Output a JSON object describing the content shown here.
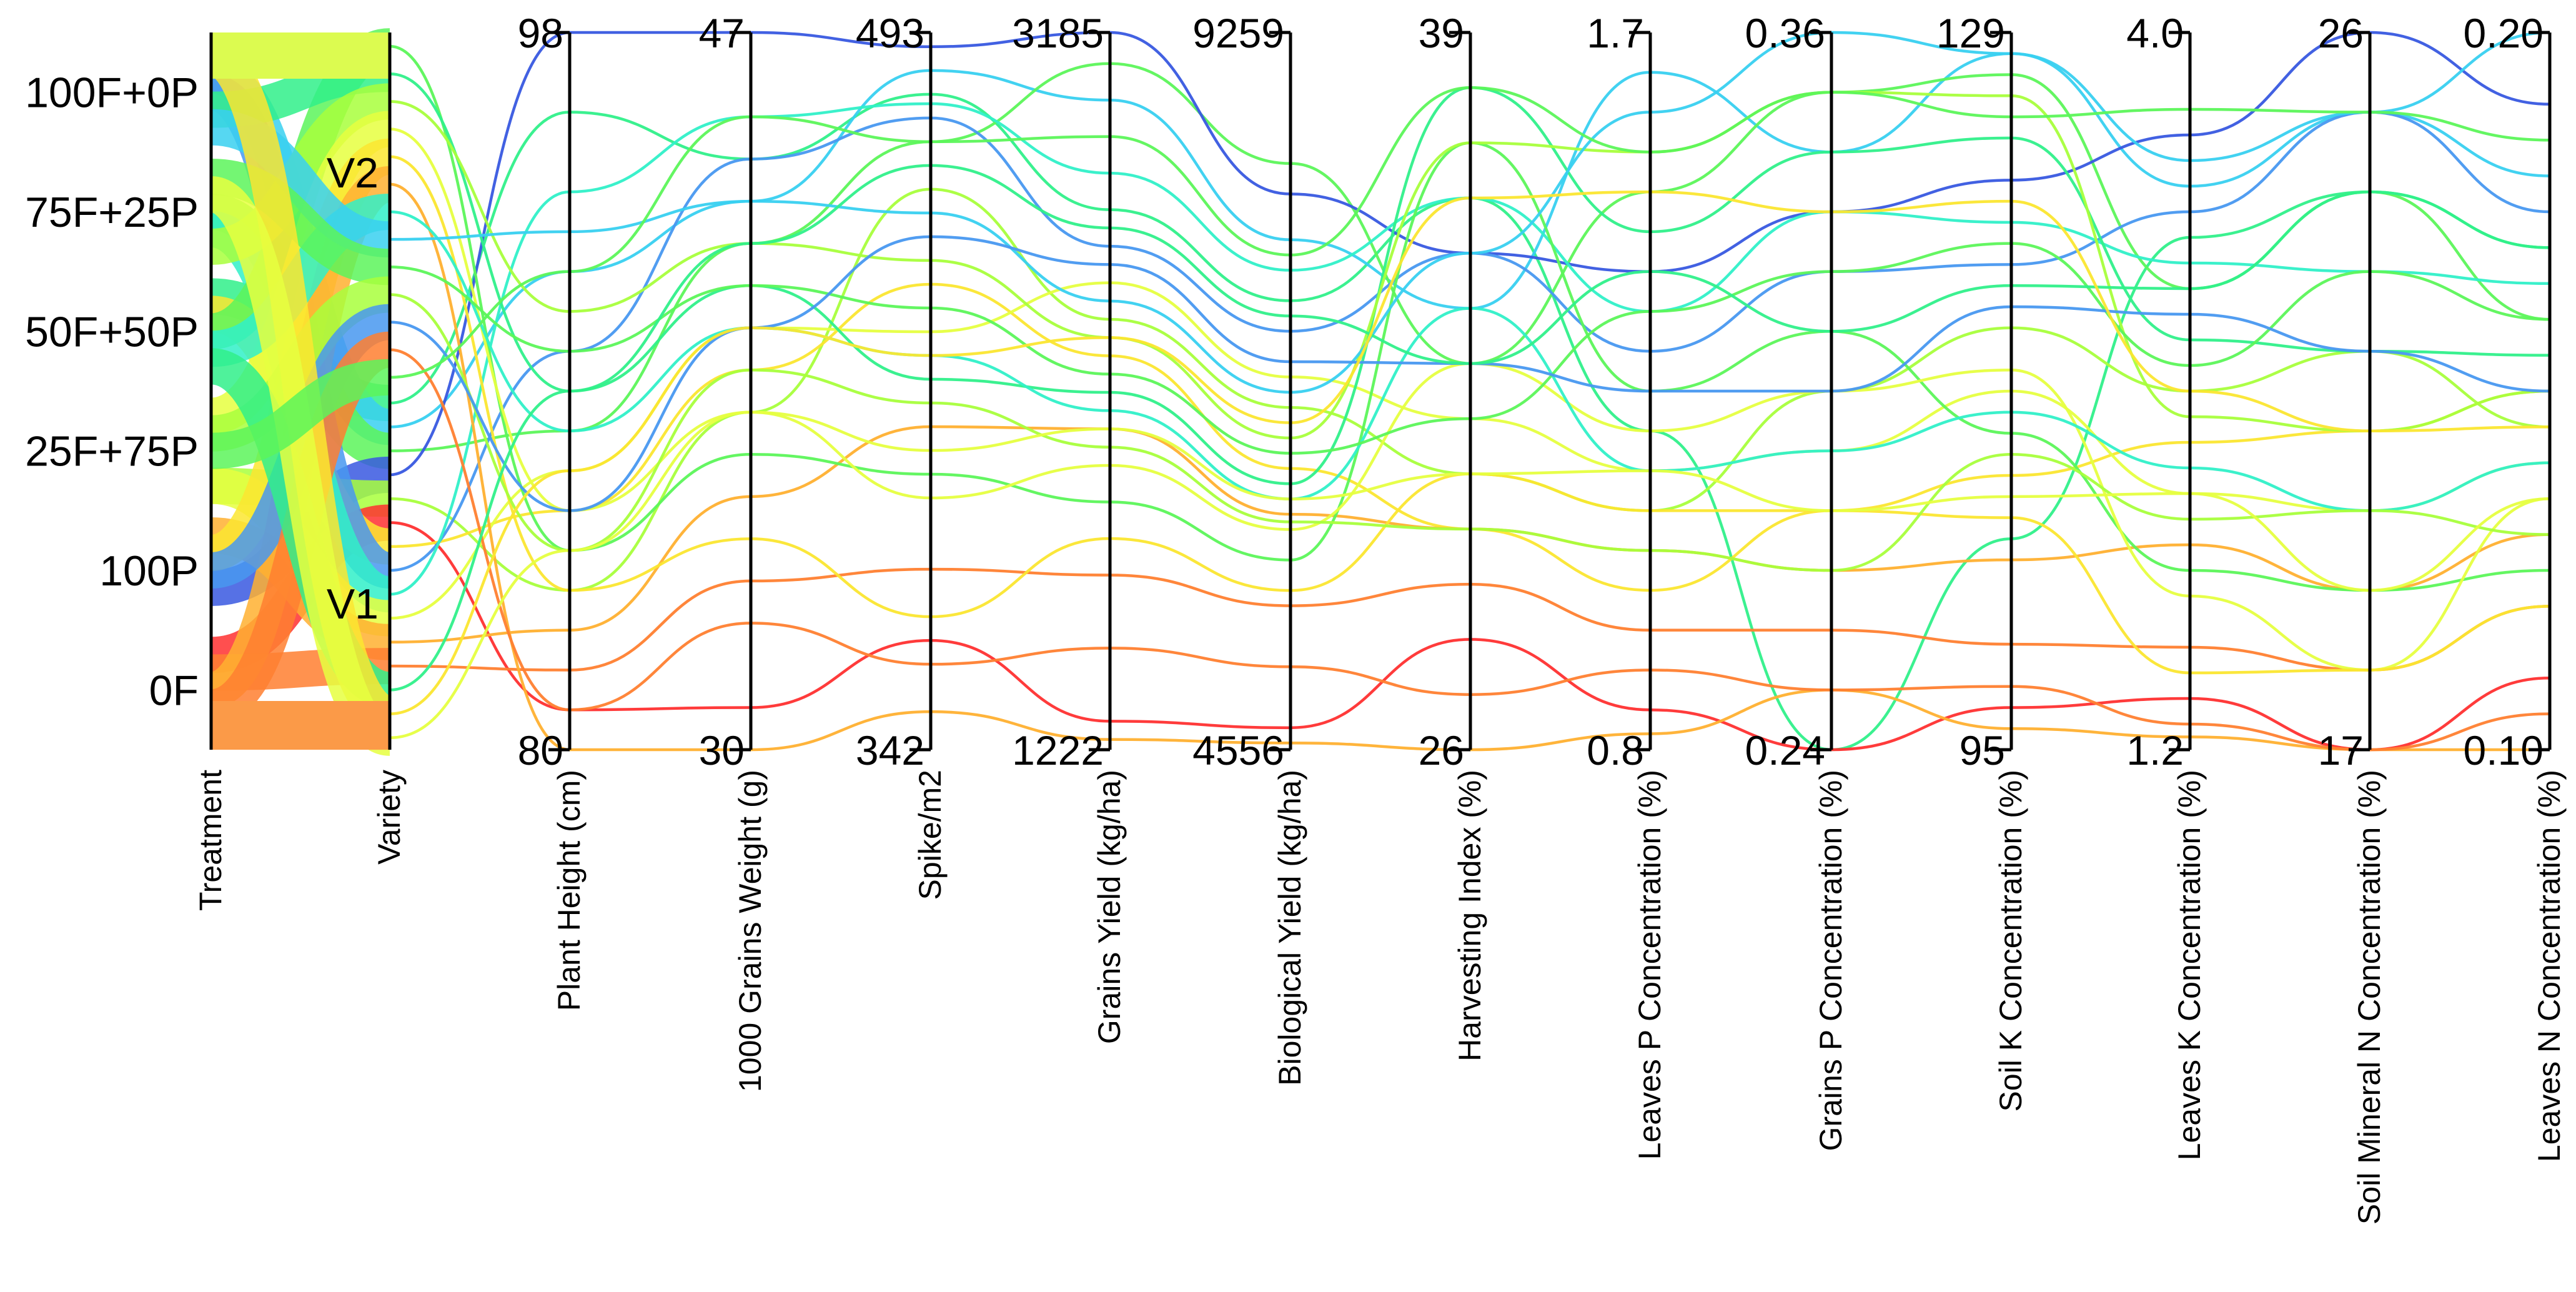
{
  "chart_data": {
    "type": "parallel-coordinates",
    "title": "",
    "categorical_axes": [
      {
        "name": "Treatment",
        "categories": [
          "100F+0P",
          "75F+25P",
          "50F+50P",
          "25F+75P",
          "100P",
          "0F"
        ]
      },
      {
        "name": "Variety",
        "categories": [
          "V2",
          "V1"
        ]
      }
    ],
    "axes": [
      {
        "name": "Treatment",
        "max_label": "",
        "min_label": ""
      },
      {
        "name": "Variety",
        "max_label": "",
        "min_label": ""
      },
      {
        "name": "Plant Height (cm)",
        "max_label": "98",
        "min_label": "80",
        "min": 80,
        "max": 98
      },
      {
        "name": "1000 Grains Weight (g)",
        "max_label": "47",
        "min_label": "30",
        "min": 30,
        "max": 47
      },
      {
        "name": "Spike/m2",
        "max_label": "493",
        "min_label": "342",
        "min": 342,
        "max": 493
      },
      {
        "name": "Grains Yield (kg/ha)",
        "max_label": "3185",
        "min_label": "1222",
        "min": 1222,
        "max": 3185
      },
      {
        "name": "Biological Yield (kg/ha)",
        "max_label": "9259",
        "min_label": "4556",
        "min": 4556,
        "max": 9259
      },
      {
        "name": "Harvesting Index (%)",
        "max_label": "39",
        "min_label": "26",
        "min": 26,
        "max": 39
      },
      {
        "name": "Leaves P Concentration (%)",
        "max_label": "1.7",
        "min_label": "0.8",
        "min": 0.8,
        "max": 1.7
      },
      {
        "name": "Grains P Concentration (%)",
        "max_label": "0.36",
        "min_label": "0.24",
        "min": 0.24,
        "max": 0.36
      },
      {
        "name": "Soil K Concentration (%)",
        "max_label": "129",
        "min_label": "95",
        "min": 95,
        "max": 129
      },
      {
        "name": "Leaves K Concentration (%)",
        "max_label": "4.0",
        "min_label": "1.2",
        "min": 1.2,
        "max": 4.0
      },
      {
        "name": "Soil Mineral N Concentration (%)",
        "max_label": "26",
        "min_label": "17",
        "min": 17,
        "max": 26
      },
      {
        "name": "Leaves N Concentration (%)",
        "max_label": "0.20",
        "min_label": "0.10",
        "min": 0.1,
        "max": 0.2
      }
    ],
    "colors": [
      "#ff3030",
      "#ff7f30",
      "#ffb030",
      "#fbe630",
      "#e6ff40",
      "#a8ff3c",
      "#5cf55a",
      "#30f08a",
      "#30f0c8",
      "#38d0f0",
      "#4898f0",
      "#3858e0"
    ],
    "records": [
      {
        "values": [
          2,
          1,
          96,
          44,
          480,
          2700,
          7500,
          36,
          1.2,
          0.24,
          105,
          3.2,
          24,
          0.17
        ],
        "color": "#30f08a"
      },
      {
        "values": [
          0,
          1,
          92,
          43,
          485,
          3000,
          7900,
          34,
          1.65,
          0.34,
          128,
          3.4,
          25,
          0.18
        ],
        "color": "#38d0f0"
      },
      {
        "values": [
          1,
          1,
          88,
          42,
          470,
          3100,
          8400,
          33,
          1.5,
          0.35,
          127,
          3.0,
          24,
          0.16
        ],
        "color": "#5cf55a"
      },
      {
        "values": [
          4,
          1,
          98,
          47,
          490,
          3185,
          8200,
          35,
          1.4,
          0.33,
          122,
          3.6,
          26,
          0.19
        ],
        "color": "#3858e0"
      },
      {
        "values": [
          3,
          1,
          84,
          38,
          460,
          2400,
          6800,
          31,
          1.1,
          0.3,
          115,
          2.6,
          22,
          0.145
        ],
        "color": "#a8ff3c"
      },
      {
        "values": [
          5,
          1,
          81,
          31,
          365,
          1300,
          4700,
          28,
          0.85,
          0.24,
          97,
          1.4,
          17,
          0.11
        ],
        "color": "#ff3030"
      },
      {
        "values": [
          2,
          1,
          86,
          39,
          440,
          2300,
          6400,
          30,
          1.0,
          0.28,
          108,
          2.4,
          21,
          0.15
        ],
        "color": "#fbe630"
      },
      {
        "values": [
          0,
          1,
          90,
          44,
          475,
          2600,
          7300,
          35,
          1.3,
          0.32,
          118,
          3.3,
          25,
          0.175
        ],
        "color": "#4898f0"
      },
      {
        "values": [
          1,
          1,
          94,
          45,
          478,
          2800,
          7700,
          36,
          1.35,
          0.33,
          120,
          3.1,
          23,
          0.165
        ],
        "color": "#30f0c8"
      },
      {
        "values": [
          3,
          1,
          87,
          40,
          430,
          2500,
          7000,
          32,
          1.15,
          0.29,
          112,
          2.2,
          20,
          0.14
        ],
        "color": "#e6ff40"
      },
      {
        "values": [
          4,
          1,
          83,
          36,
          410,
          2100,
          6100,
          30,
          1.05,
          0.27,
          104,
          2.0,
          19,
          0.13
        ],
        "color": "#ffb030"
      },
      {
        "values": [
          5,
          1,
          82,
          34,
          380,
          1700,
          5500,
          29,
          0.95,
          0.26,
          100,
          1.6,
          18,
          0.12
        ],
        "color": "#ff7f30"
      },
      {
        "values": [
          2,
          0,
          85,
          37,
          400,
          1900,
          5800,
          37,
          1.25,
          0.31,
          110,
          1.9,
          19,
          0.125
        ],
        "color": "#5cf55a"
      },
      {
        "values": [
          0,
          0,
          89,
          41,
          420,
          2200,
          6300,
          38,
          1.45,
          0.34,
          124,
          2.8,
          22,
          0.155
        ],
        "color": "#30f08a"
      },
      {
        "values": [
          1,
          0,
          91,
          42,
          445,
          2350,
          6600,
          37,
          1.55,
          0.35,
          126,
          2.5,
          21,
          0.15
        ],
        "color": "#a8ff3c"
      },
      {
        "values": [
          3,
          0,
          86,
          38,
          395,
          2000,
          6000,
          33,
          1.2,
          0.3,
          113,
          1.8,
          18,
          0.135
        ],
        "color": "#e6ff40"
      },
      {
        "values": [
          4,
          0,
          84,
          35,
          370,
          1800,
          5600,
          31,
          1.1,
          0.28,
          106,
          1.5,
          18,
          0.12
        ],
        "color": "#fbe630"
      },
      {
        "values": [
          5,
          0,
          80,
          30,
          350,
          1250,
          4600,
          26,
          0.82,
          0.25,
          96,
          1.25,
          17,
          0.1
        ],
        "color": "#ffb030"
      },
      {
        "values": [
          2,
          0,
          88,
          40,
          425,
          2150,
          6200,
          34,
          1.15,
          0.29,
          111,
          2.3,
          20,
          0.14
        ],
        "color": "#30f0c8"
      },
      {
        "values": [
          0,
          0,
          93,
          43,
          455,
          2450,
          6900,
          35,
          1.6,
          0.36,
          128,
          3.5,
          25,
          0.2
        ],
        "color": "#38d0f0"
      },
      {
        "values": [
          1,
          0,
          90,
          41,
          435,
          2250,
          6500,
          32,
          1.35,
          0.32,
          119,
          2.7,
          23,
          0.16
        ],
        "color": "#5cf55a"
      },
      {
        "values": [
          3,
          0,
          85,
          39,
          415,
          2050,
          6050,
          30,
          1.05,
          0.27,
          109,
          2.1,
          20,
          0.13
        ],
        "color": "#a8ff3c"
      },
      {
        "values": [
          4,
          0,
          86,
          40,
          450,
          2550,
          7100,
          33,
          1.25,
          0.3,
          116,
          2.9,
          22,
          0.15
        ],
        "color": "#4898f0"
      },
      {
        "values": [
          5,
          0,
          81,
          33,
          360,
          1500,
          5100,
          27,
          0.9,
          0.25,
          98,
          1.3,
          17,
          0.105
        ],
        "color": "#ff7f30"
      },
      {
        "values": [
          2,
          1,
          89,
          42,
          465,
          2650,
          7400,
          33,
          1.4,
          0.31,
          117,
          3.0,
          24,
          0.17
        ],
        "color": "#30f08a"
      },
      {
        "values": [
          0,
          1,
          87,
          40,
          425,
          2350,
          6700,
          36,
          1.5,
          0.33,
          121,
          2.6,
          21,
          0.145
        ],
        "color": "#fbe630"
      },
      {
        "values": [
          1,
          1,
          85,
          38,
          405,
          2100,
          6200,
          31,
          1.15,
          0.28,
          107,
          2.2,
          19,
          0.135
        ],
        "color": "#e6ff40"
      },
      {
        "values": [
          3,
          0,
          92,
          45,
          470,
          2900,
          7800,
          38,
          1.55,
          0.35,
          125,
          3.7,
          25,
          0.185
        ],
        "color": "#5cf55a"
      }
    ]
  }
}
